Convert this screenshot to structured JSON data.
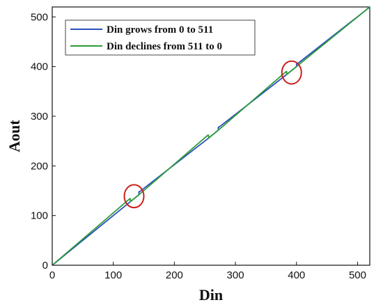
{
  "chart_data": {
    "type": "line",
    "title": "",
    "xlabel": "Din",
    "ylabel": "Aout",
    "xlim": [
      0,
      520
    ],
    "ylim": [
      0,
      520
    ],
    "xticks": [
      0,
      100,
      200,
      300,
      400,
      500
    ],
    "yticks": [
      0,
      100,
      200,
      300,
      400,
      500
    ],
    "grid": false,
    "legend_position": "top-left",
    "series": [
      {
        "name": "Din grows from 0 to 511",
        "color": "#2b4fbf",
        "points": [
          [
            0,
            0
          ],
          [
            128,
            128
          ],
          [
            142,
            142
          ],
          [
            142,
            148
          ],
          [
            143,
            148
          ],
          [
            256,
            256
          ],
          [
            272,
            272
          ],
          [
            272,
            278
          ],
          [
            273,
            278
          ],
          [
            384,
            384
          ],
          [
            400,
            400
          ],
          [
            400,
            405
          ],
          [
            401,
            405
          ],
          [
            511,
            511
          ],
          [
            520,
            520
          ]
        ]
      },
      {
        "name": "Din declines from 511 to 0",
        "color": "#2e9b3b",
        "points": [
          [
            520,
            520
          ],
          [
            511,
            511
          ],
          [
            401,
            401
          ],
          [
            384,
            384
          ],
          [
            384,
            390
          ],
          [
            383,
            390
          ],
          [
            273,
            273
          ],
          [
            256,
            256
          ],
          [
            256,
            262
          ],
          [
            255,
            262
          ],
          [
            143,
            143
          ],
          [
            128,
            128
          ],
          [
            128,
            134
          ],
          [
            127,
            134
          ],
          [
            0,
            0
          ]
        ]
      }
    ],
    "annotations": [
      {
        "shape": "ellipse",
        "color": "#cc1f1f",
        "cx": 134,
        "cy": 139,
        "rx": 16,
        "ry": 23
      },
      {
        "shape": "ellipse",
        "color": "#cc1f1f",
        "cx": 392,
        "cy": 388,
        "rx": 16,
        "ry": 23
      }
    ]
  }
}
